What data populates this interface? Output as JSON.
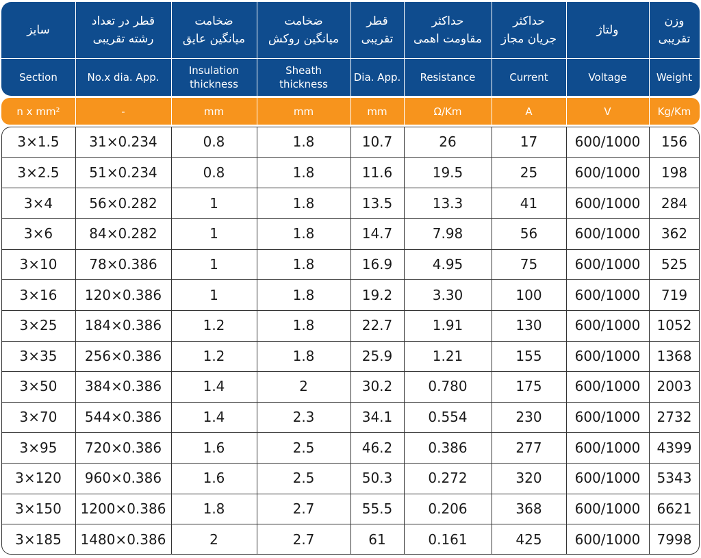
{
  "table": {
    "header_fa": [
      [
        "سایز"
      ],
      [
        "قطر در تعداد",
        "رشته تقریبی"
      ],
      [
        "ضخامت",
        "میانگین عایق"
      ],
      [
        "ضخامت",
        "میانگین روکش"
      ],
      [
        "قطر",
        "تقریبی"
      ],
      [
        "حداکثر",
        "مقاومت اهمی"
      ],
      [
        "حداکثر",
        "جریان مجاز"
      ],
      [
        "ولتاژ"
      ],
      [
        "وزن",
        "تقریبی"
      ]
    ],
    "header_en": [
      [
        "Section"
      ],
      [
        "No.x dia. App."
      ],
      [
        "Insulation",
        "thickness"
      ],
      [
        "Sheath",
        "thickness"
      ],
      [
        "Dia. App."
      ],
      [
        "Resistance"
      ],
      [
        "Current"
      ],
      [
        "Voltage"
      ],
      [
        "Weight"
      ]
    ],
    "units": [
      "n x mm²",
      "-",
      "mm",
      "mm",
      "mm",
      "Ω/Km",
      "A",
      "V",
      "Kg/Km"
    ],
    "rows": [
      [
        "3×1.5",
        "31×0.234",
        "0.8",
        "1.8",
        "10.7",
        "26",
        "17",
        "600/1000",
        "156"
      ],
      [
        "3×2.5",
        "51×0.234",
        "0.8",
        "1.8",
        "11.6",
        "19.5",
        "25",
        "600/1000",
        "198"
      ],
      [
        "3×4",
        "56×0.282",
        "1",
        "1.8",
        "13.5",
        "13.3",
        "41",
        "600/1000",
        "284"
      ],
      [
        "3×6",
        "84×0.282",
        "1",
        "1.8",
        "14.7",
        "7.98",
        "56",
        "600/1000",
        "362"
      ],
      [
        "3×10",
        "78×0.386",
        "1",
        "1.8",
        "16.9",
        "4.95",
        "75",
        "600/1000",
        "525"
      ],
      [
        "3×16",
        "120×0.386",
        "1",
        "1.8",
        "19.2",
        "3.30",
        "100",
        "600/1000",
        "719"
      ],
      [
        "3×25",
        "184×0.386",
        "1.2",
        "1.8",
        "22.7",
        "1.91",
        "130",
        "600/1000",
        "1052"
      ],
      [
        "3×35",
        "256×0.386",
        "1.2",
        "1.8",
        "25.9",
        "1.21",
        "155",
        "600/1000",
        "1368"
      ],
      [
        "3×50",
        "384×0.386",
        "1.4",
        "2",
        "30.2",
        "0.780",
        "175",
        "600/1000",
        "2003"
      ],
      [
        "3×70",
        "544×0.386",
        "1.4",
        "2.3",
        "34.1",
        "0.554",
        "230",
        "600/1000",
        "2732"
      ],
      [
        "3×95",
        "720×0.386",
        "1.6",
        "2.5",
        "46.2",
        "0.386",
        "277",
        "600/1000",
        "4399"
      ],
      [
        "3×120",
        "960×0.386",
        "1.6",
        "2.5",
        "50.3",
        "0.272",
        "320",
        "600/1000",
        "5343"
      ],
      [
        "3×150",
        "1200×0.386",
        "1.8",
        "2.7",
        "55.5",
        "0.206",
        "368",
        "600/1000",
        "6621"
      ],
      [
        "3×185",
        "1480×0.386",
        "2",
        "2.7",
        "61",
        "0.161",
        "425",
        "600/1000",
        "7998"
      ]
    ]
  }
}
